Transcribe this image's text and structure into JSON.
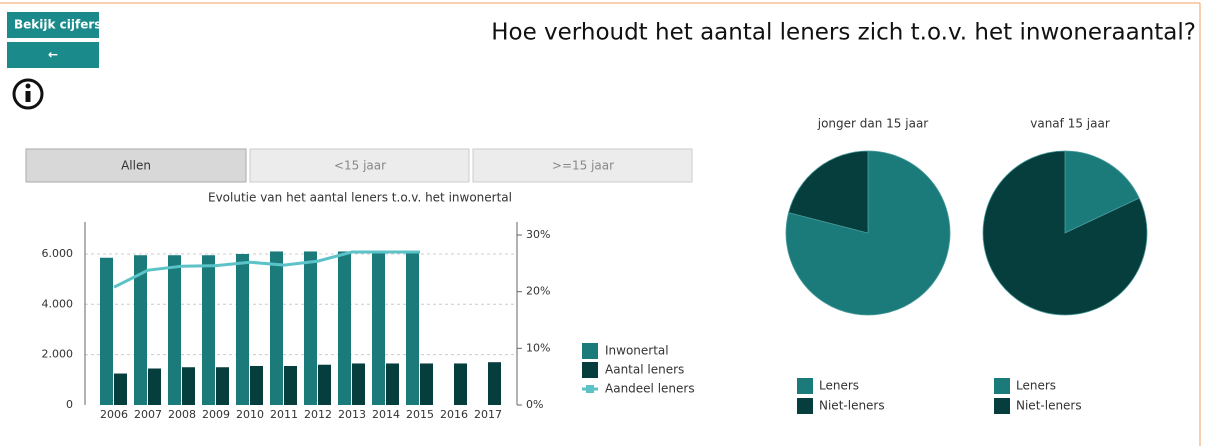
{
  "header": {
    "buttons": [
      "Bekijk cijfers",
      "←"
    ],
    "title": "Hoe verhoudt het aantal leners zich t.o.v. het inwoneraantal?"
  },
  "tabs": [
    "Allen",
    "<15 jaar",
    ">=15 jaar"
  ],
  "chart_data": [
    {
      "type": "bar",
      "title": "Evolutie van het aantal leners t.o.v. het inwonertal",
      "categories": [
        "2006",
        "2007",
        "2008",
        "2009",
        "2010",
        "2011",
        "2012",
        "2013",
        "2014",
        "2015",
        "2016",
        "2017"
      ],
      "series": [
        {
          "name": "Inwonertal",
          "color": "#1b7b7b",
          "values": [
            5850,
            5950,
            5950,
            5950,
            6000,
            6100,
            6100,
            6100,
            6100,
            6100,
            null,
            null
          ]
        },
        {
          "name": "Aantal leners",
          "color": "#063d3d",
          "values": [
            1250,
            1450,
            1500,
            1500,
            1550,
            1550,
            1600,
            1650,
            1650,
            1650,
            1650,
            1700
          ]
        },
        {
          "name": "Aandeel leners",
          "type": "line",
          "axis": "y2",
          "color": "#5bc3c8",
          "values": [
            20.8,
            23.8,
            24.5,
            24.6,
            25.2,
            24.7,
            25.4,
            27,
            27,
            27,
            null,
            null
          ]
        }
      ],
      "ylim": [
        0,
        7270
      ],
      "yticks": [
        0,
        {
          "value": 2000,
          "label": "2.000"
        },
        {
          "value": 4000,
          "label": "4.000"
        },
        {
          "value": 6000,
          "label": "6.000"
        }
      ],
      "y2lim": [
        0,
        32.3
      ],
      "y2ticks": [
        {
          "value": 0,
          "label": "0%"
        },
        {
          "value": 10,
          "label": "10%"
        },
        {
          "value": 20,
          "label": "20%"
        },
        {
          "value": 30,
          "label": "30%"
        }
      ],
      "grid": true,
      "legend": "right"
    },
    {
      "type": "pie",
      "title": "jonger dan 15 jaar",
      "categories": [
        "Leners",
        "Niet-leners"
      ],
      "values": [
        79,
        21
      ],
      "colors": [
        "#1b7b7b",
        "#063d3d"
      ]
    },
    {
      "type": "pie",
      "title": "vanaf 15 jaar",
      "categories": [
        "Leners",
        "Niet-leners"
      ],
      "values": [
        18,
        82
      ],
      "colors": [
        "#1b7b7b",
        "#063d3d"
      ]
    }
  ]
}
